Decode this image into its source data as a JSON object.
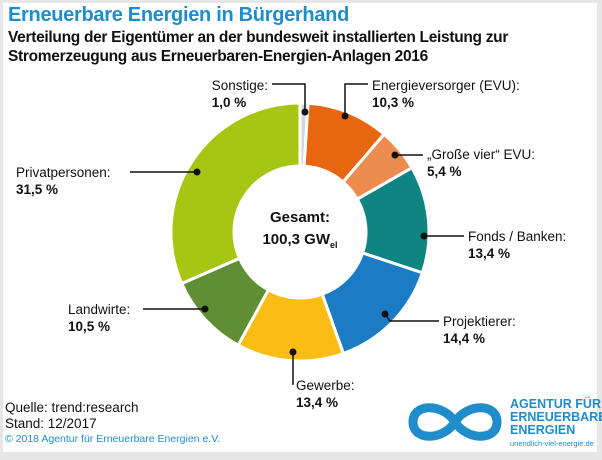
{
  "header": {
    "title": "Erneuerbare Energien in Bürgerhand",
    "subtitle": "Verteilung der Eigentümer an der bundesweit installierten Leistung zur Stromerzeugung aus Erneuerbaren-Energien-Anlagen 2016"
  },
  "chart_data": {
    "type": "pie",
    "donut": true,
    "start": "top, clockwise",
    "center_label": {
      "line1": "Gesamt:",
      "value": "100,3 GW",
      "subscript": "el"
    },
    "slices": [
      {
        "name": "Sonstige:",
        "label": "1,0 %",
        "value": 1.0,
        "color": "#d6d6d6"
      },
      {
        "name": "Energieversorger (EVU):",
        "label": "10,3 %",
        "value": 10.3,
        "color": "#e8660f"
      },
      {
        "name": "„Große vier“ EVU:",
        "label": "5,4 %",
        "value": 5.4,
        "color": "#ec8c4f"
      },
      {
        "name": "Fonds / Banken:",
        "label": "13,4 %",
        "value": 13.4,
        "color": "#0e8582"
      },
      {
        "name": "Projektierer:",
        "label": "14,4 %",
        "value": 14.4,
        "color": "#1b7bc4"
      },
      {
        "name": "Gewerbe:",
        "label": "13,4 %",
        "value": 13.4,
        "color": "#fbbc13"
      },
      {
        "name": "Landwirte:",
        "label": "10,5 %",
        "value": 10.5,
        "color": "#5f8e35"
      },
      {
        "name": "Privatpersonen:",
        "label": "31,5 %",
        "value": 31.5,
        "color": "#a7c513"
      }
    ]
  },
  "footer": {
    "source": "Quelle: trend:research",
    "date": "Stand: 12/2017",
    "copyright": "© 2018 Agentur für Erneuerbare Energien e.V."
  },
  "logo": {
    "line1": "AGENTUR FÜR",
    "line2": "ERNEUERBARE",
    "line3": "ENERGIEN",
    "url": "unendlich-viel-energie.de",
    "color": "#1f8dcb"
  }
}
